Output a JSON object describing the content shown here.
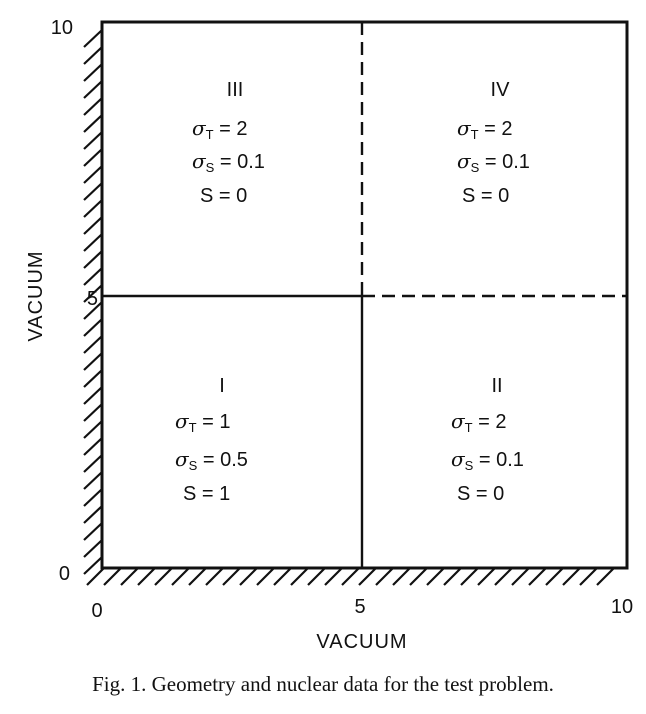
{
  "axis": {
    "bottom_label": "VACUUM",
    "left_label": "VACUUM",
    "x_ticks": [
      "0",
      "5",
      "10"
    ],
    "y_ticks": [
      "0",
      "5",
      "10"
    ]
  },
  "regions": [
    {
      "id": "III",
      "label": "III",
      "sigma_t": "σ_T = 2",
      "sigma_s": "σ_S = 0.1",
      "source": "S = 0"
    },
    {
      "id": "IV",
      "label": "IV",
      "sigma_t": "σ_T = 2",
      "sigma_s": "σ_S = 0.1",
      "source": "S = 0"
    },
    {
      "id": "I",
      "label": "I",
      "sigma_t": "σ_T = 1",
      "sigma_s": "σ_S = 0.5",
      "source": "S = 1"
    },
    {
      "id": "II",
      "label": "II",
      "sigma_t": "σ_T = 2",
      "sigma_s": "σ_S = 0.1",
      "source": "S = 0"
    }
  ],
  "caption": "Fig. 1. Geometry and nuclear data for the test problem."
}
